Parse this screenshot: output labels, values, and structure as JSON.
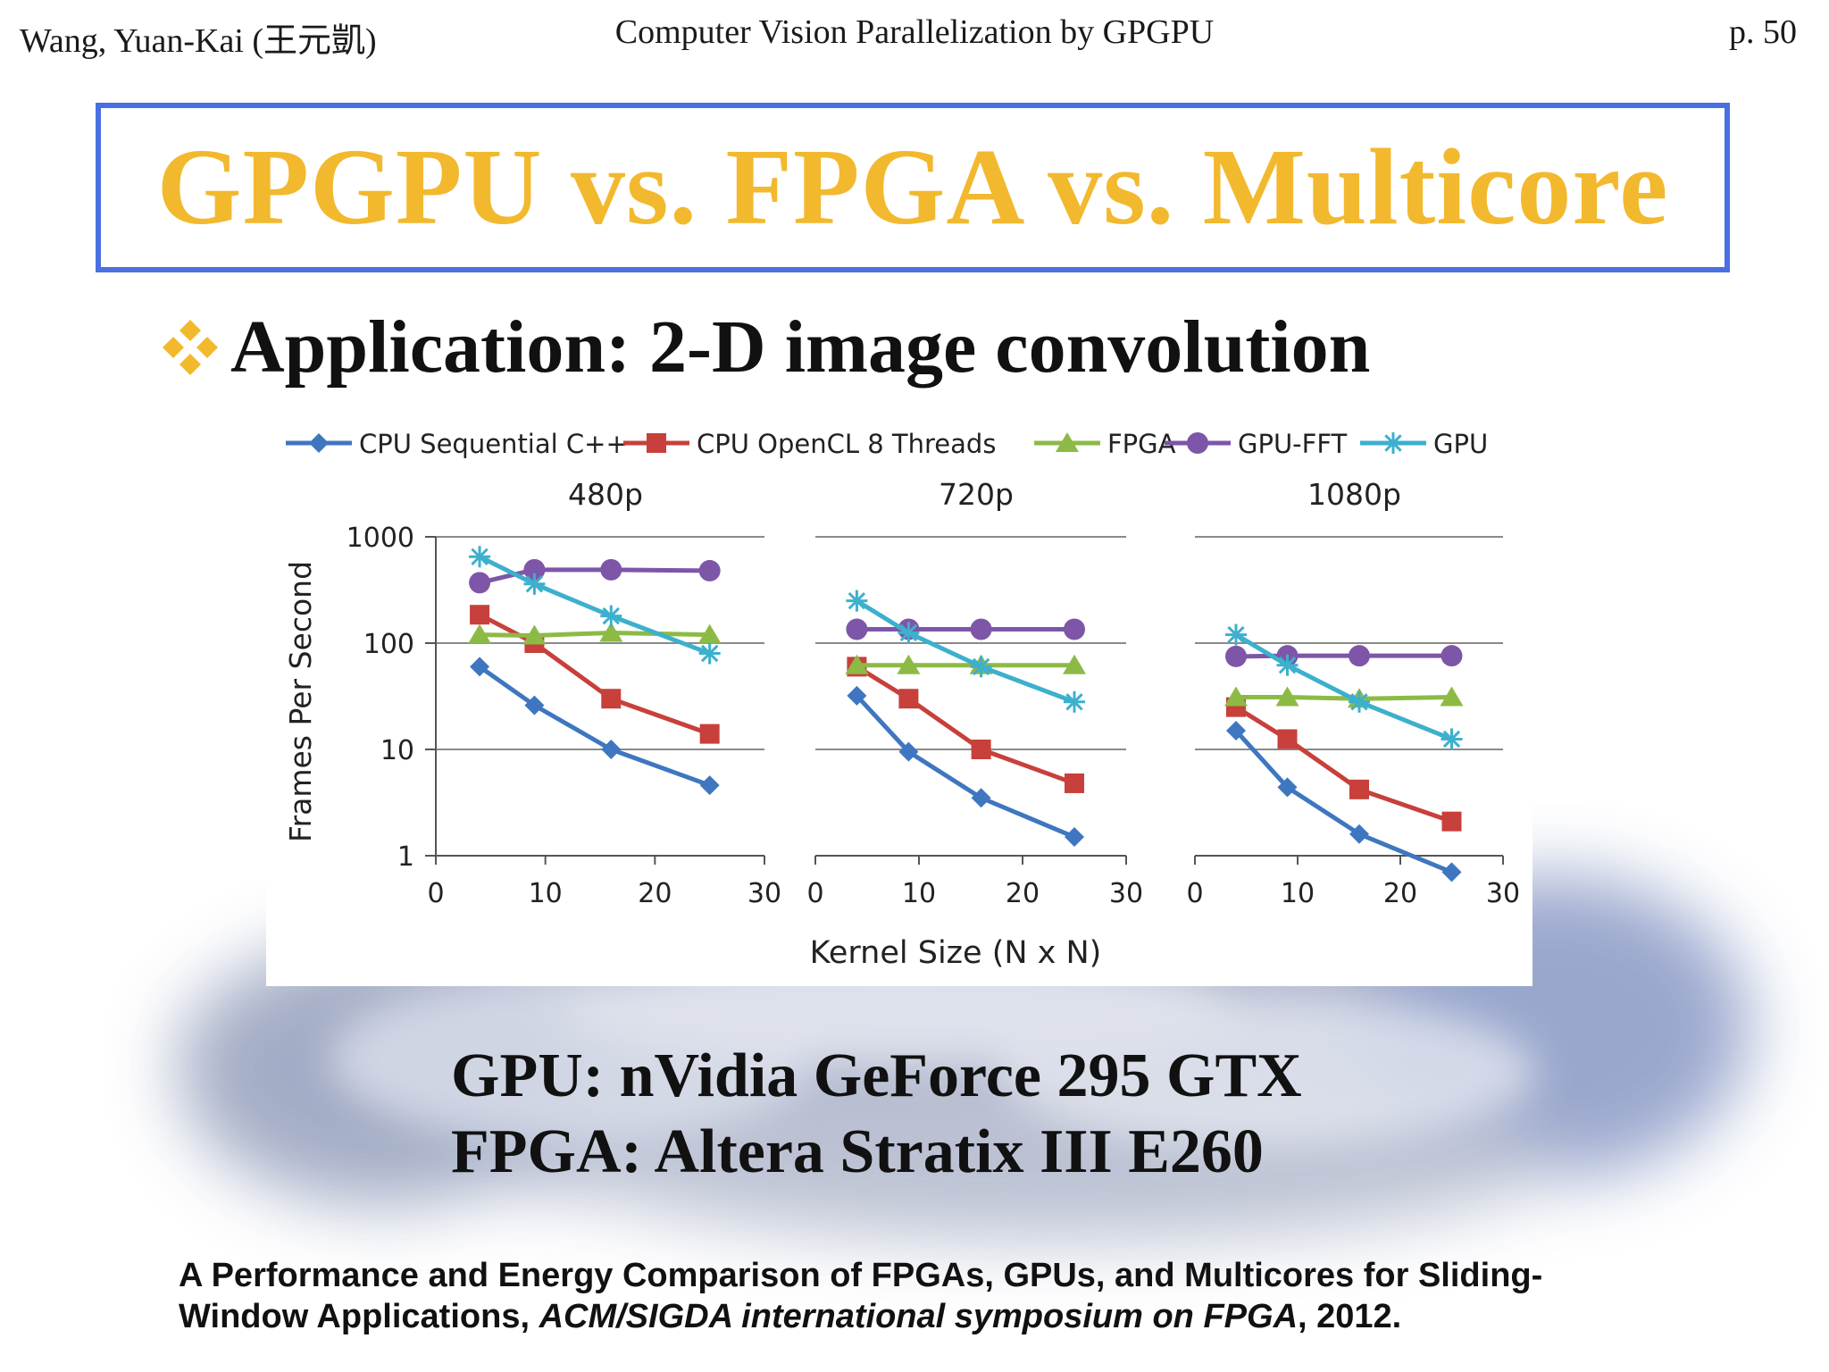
{
  "header": {
    "author": "Wang, Yuan-Kai (王元凱)",
    "course": "Computer Vision Parallelization by GPGPU",
    "page": "p. 50"
  },
  "title": "GPGPU vs. FPGA vs. Multicore",
  "bullet": {
    "icon": "diamond-bullet-icon",
    "text": "Application: 2-D image convolution"
  },
  "specs": {
    "gpu": "GPU: nVidia GeForce 295 GTX",
    "fpga": "FPGA:  Altera Stratix III E260"
  },
  "citation": {
    "line1": "A Performance and Energy Comparison of FPGAs, GPUs, and Multicores for Sliding-",
    "line2_start": "Window Applications, ",
    "line2_venue": "ACM/SIGDA international symposium on FPGA",
    "line2_end": ", 2012."
  },
  "colors": {
    "title": "#f2b92e",
    "title_border": "#4a6fe0",
    "bullet": "#f2b92e"
  },
  "chart_data": {
    "type": "line",
    "ylabel": "Frames Per Second",
    "xlabel": "Kernel Size (N x N)",
    "yscale": "log",
    "ylim": [
      1,
      1000
    ],
    "yticks": [
      "1",
      "10",
      "100",
      "1000"
    ],
    "xlim": [
      0,
      30
    ],
    "xticks": [
      "0",
      "10",
      "20",
      "30"
    ],
    "grid": "horizontal",
    "legend_position": "top",
    "series_styles": [
      {
        "name": "CPU Sequential C++",
        "color": "#3f76c0",
        "marker": "diamond"
      },
      {
        "name": "CPU OpenCL 8 Threads",
        "color": "#c8403b",
        "marker": "square"
      },
      {
        "name": "FPGA",
        "color": "#8dba45",
        "marker": "triangle"
      },
      {
        "name": "GPU-FFT",
        "color": "#7d56a8",
        "marker": "circle"
      },
      {
        "name": "GPU",
        "color": "#3cb0cc",
        "marker": "star"
      }
    ],
    "panels": [
      {
        "title": "480p",
        "x": [
          4,
          9,
          16,
          25
        ],
        "series": [
          {
            "name": "CPU Sequential C++",
            "values": [
              60,
              26,
              10,
              4.6
            ]
          },
          {
            "name": "CPU OpenCL 8 Threads",
            "values": [
              185,
              100,
              30,
              14
            ]
          },
          {
            "name": "FPGA",
            "values": [
              120,
              118,
              125,
              120
            ]
          },
          {
            "name": "GPU-FFT",
            "values": [
              370,
              490,
              490,
              480
            ]
          },
          {
            "name": "GPU",
            "values": [
              650,
              360,
              180,
              80
            ]
          }
        ]
      },
      {
        "title": "720p",
        "x": [
          4,
          9,
          16,
          25
        ],
        "series": [
          {
            "name": "CPU Sequential C++",
            "values": [
              32,
              9.5,
              3.5,
              1.5
            ]
          },
          {
            "name": "CPU OpenCL 8 Threads",
            "values": [
              60,
              30,
              10,
              4.8
            ]
          },
          {
            "name": "FPGA",
            "values": [
              62,
              62,
              62,
              62
            ]
          },
          {
            "name": "GPU-FFT",
            "values": [
              135,
              135,
              135,
              135
            ]
          },
          {
            "name": "GPU",
            "values": [
              250,
              125,
              60,
              28
            ]
          }
        ]
      },
      {
        "title": "1080p",
        "x": [
          4,
          9,
          16,
          25
        ],
        "series": [
          {
            "name": "CPU Sequential C++",
            "values": [
              15,
              4.4,
              1.6,
              0.7
            ]
          },
          {
            "name": "CPU OpenCL 8 Threads",
            "values": [
              25,
              12.5,
              4.2,
              2.1
            ]
          },
          {
            "name": "FPGA",
            "values": [
              31,
              31,
              30,
              31
            ]
          },
          {
            "name": "GPU-FFT",
            "values": [
              75,
              76,
              76,
              76
            ]
          },
          {
            "name": "GPU",
            "values": [
              120,
              62,
              28,
              12.5
            ]
          }
        ]
      }
    ]
  }
}
